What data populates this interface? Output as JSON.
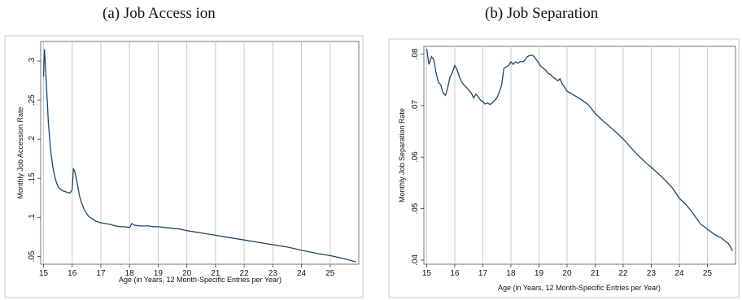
{
  "chart_data": [
    {
      "type": "line",
      "title": "(a) Job Access ion",
      "xlabel": "Age (in Years, 12 Month-Specific Entries per Year)",
      "ylabel": "Monthly Job Accession Rate",
      "xlim": [
        14.9,
        26.0
      ],
      "ylim": [
        0.04,
        0.325
      ],
      "xticks": [
        "15",
        "16",
        "17",
        "18",
        "19",
        "20",
        "21",
        "22",
        "23",
        "24",
        "25"
      ],
      "yticks": [
        ".05",
        ".1",
        ".15",
        ".2",
        ".25",
        ".3"
      ],
      "ytick_values": [
        0.05,
        0.1,
        0.15,
        0.2,
        0.25,
        0.3
      ],
      "grid": "vertical",
      "series": [
        {
          "x": [
            15.0,
            15.03,
            15.08,
            15.17,
            15.25,
            15.33,
            15.42,
            15.5,
            15.58,
            15.67,
            15.75,
            15.83,
            15.92,
            16.0,
            16.04,
            16.08,
            16.17,
            16.25,
            16.33,
            16.42,
            16.5,
            16.58,
            16.67,
            16.75,
            16.83,
            16.92,
            17.0,
            17.17,
            17.33,
            17.5,
            17.67,
            17.83,
            18.0,
            18.08,
            18.17,
            18.33,
            18.5,
            18.67,
            18.83,
            19.0,
            19.25,
            19.5,
            19.75,
            20.0,
            20.5,
            21.0,
            21.5,
            22.0,
            22.5,
            23.0,
            23.5,
            24.0,
            24.5,
            25.0,
            25.5,
            25.9
          ],
          "y": [
            0.28,
            0.315,
            0.285,
            0.22,
            0.185,
            0.163,
            0.148,
            0.14,
            0.136,
            0.134,
            0.133,
            0.132,
            0.131,
            0.135,
            0.162,
            0.16,
            0.145,
            0.128,
            0.118,
            0.11,
            0.105,
            0.101,
            0.099,
            0.097,
            0.095,
            0.094,
            0.093,
            0.092,
            0.091,
            0.089,
            0.088,
            0.088,
            0.087,
            0.092,
            0.09,
            0.089,
            0.089,
            0.089,
            0.088,
            0.088,
            0.087,
            0.086,
            0.085,
            0.083,
            0.08,
            0.077,
            0.074,
            0.071,
            0.068,
            0.065,
            0.062,
            0.058,
            0.054,
            0.051,
            0.047,
            0.043
          ]
        }
      ]
    },
    {
      "type": "line",
      "title": "(b) Job Separation",
      "xlabel": "Age (in Years, 12 Month-Specific Entries per Year)",
      "ylabel": "Monthly Job Separation Rate",
      "xlim": [
        14.9,
        26.0
      ],
      "ylim": [
        0.0392,
        0.0815
      ],
      "xticks": [
        "15",
        "16",
        "17",
        "18",
        "19",
        "20",
        "21",
        "22",
        "23",
        "24",
        "25"
      ],
      "yticks": [
        ".04",
        ".05",
        ".06",
        ".07",
        ".08"
      ],
      "ytick_values": [
        0.04,
        0.05,
        0.06,
        0.07,
        0.08
      ],
      "grid": "vertical",
      "series": [
        {
          "x": [
            15.0,
            15.08,
            15.17,
            15.25,
            15.33,
            15.42,
            15.5,
            15.58,
            15.67,
            15.75,
            15.83,
            15.92,
            16.0,
            16.08,
            16.17,
            16.25,
            16.33,
            16.42,
            16.5,
            16.58,
            16.67,
            16.75,
            16.83,
            16.92,
            17.0,
            17.08,
            17.17,
            17.25,
            17.33,
            17.42,
            17.5,
            17.58,
            17.67,
            17.75,
            17.83,
            17.92,
            18.0,
            18.08,
            18.17,
            18.25,
            18.33,
            18.42,
            18.5,
            18.58,
            18.67,
            18.75,
            18.83,
            18.92,
            19.0,
            19.08,
            19.17,
            19.25,
            19.33,
            19.42,
            19.5,
            19.58,
            19.67,
            19.75,
            19.83,
            19.92,
            20.0,
            20.25,
            20.5,
            20.75,
            21.0,
            21.25,
            21.5,
            21.75,
            22.0,
            22.25,
            22.5,
            22.75,
            23.0,
            23.25,
            23.5,
            23.75,
            24.0,
            24.25,
            24.5,
            24.75,
            25.0,
            25.25,
            25.5,
            25.75,
            25.9
          ],
          "y": [
            0.081,
            0.078,
            0.0795,
            0.079,
            0.0765,
            0.0745,
            0.074,
            0.0725,
            0.072,
            0.0735,
            0.0755,
            0.0765,
            0.0778,
            0.077,
            0.0755,
            0.0745,
            0.074,
            0.0735,
            0.073,
            0.0725,
            0.0715,
            0.0722,
            0.0718,
            0.071,
            0.0708,
            0.0703,
            0.0705,
            0.0702,
            0.0705,
            0.071,
            0.0715,
            0.0725,
            0.074,
            0.0772,
            0.0775,
            0.0778,
            0.0785,
            0.078,
            0.0785,
            0.0782,
            0.0786,
            0.0785,
            0.0788,
            0.0795,
            0.0797,
            0.0798,
            0.0795,
            0.0788,
            0.0782,
            0.0775,
            0.0772,
            0.0768,
            0.0762,
            0.076,
            0.0755,
            0.0752,
            0.0748,
            0.0752,
            0.0742,
            0.0735,
            0.0728,
            0.072,
            0.0712,
            0.0702,
            0.0685,
            0.0672,
            0.066,
            0.0648,
            0.0635,
            0.062,
            0.0605,
            0.0592,
            0.058,
            0.0568,
            0.0555,
            0.054,
            0.052,
            0.0507,
            0.049,
            0.047,
            0.046,
            0.045,
            0.0443,
            0.0432,
            0.0418
          ]
        }
      ]
    }
  ]
}
